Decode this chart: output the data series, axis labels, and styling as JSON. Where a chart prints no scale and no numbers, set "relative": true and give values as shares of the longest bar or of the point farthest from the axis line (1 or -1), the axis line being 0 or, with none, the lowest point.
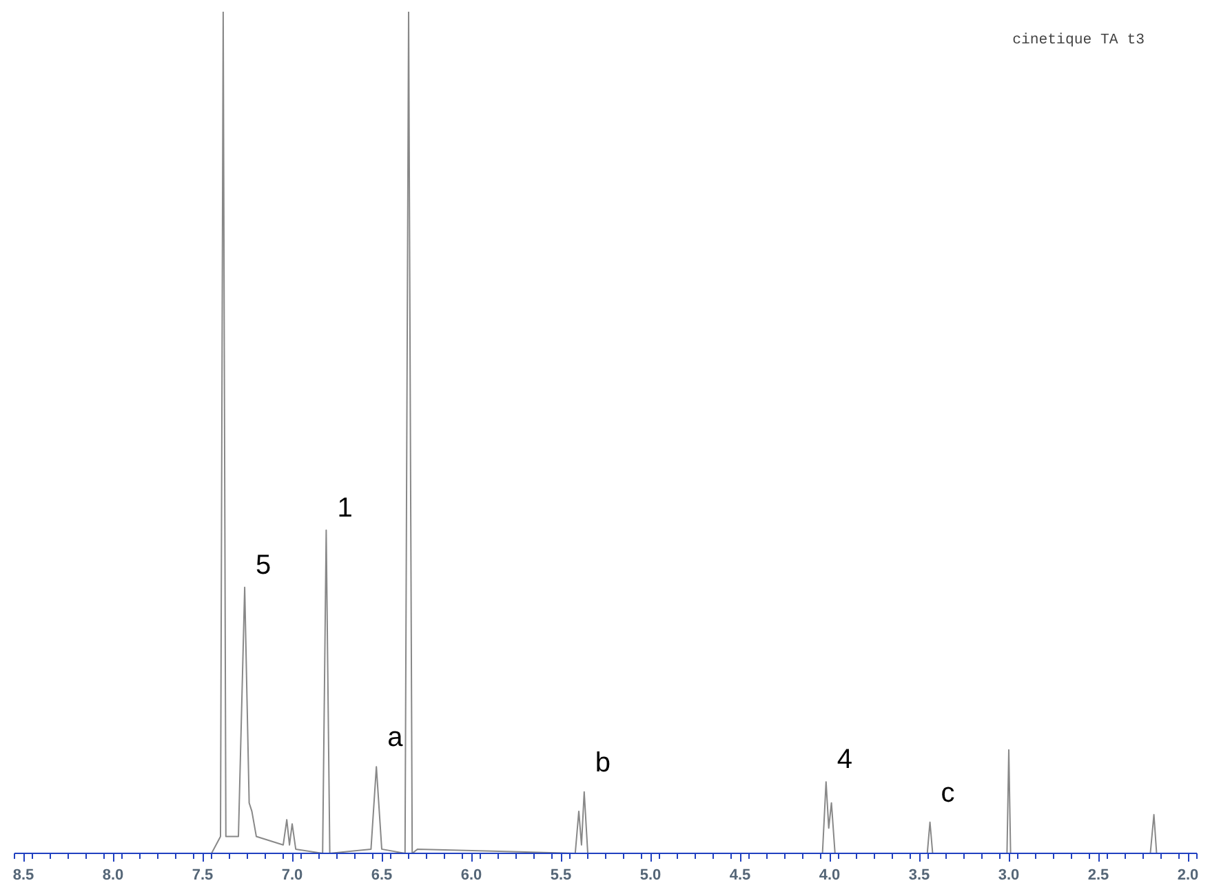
{
  "chart_data": {
    "type": "line",
    "relative": true,
    "grid": false,
    "marker": "none",
    "line_style": "solid",
    "tick_labels": "x",
    "x": [
      8.5,
      7.45,
      7.4,
      7.385,
      7.37,
      7.3,
      7.265,
      7.24,
      7.225,
      7.2,
      7.05,
      7.03,
      7.015,
      7.0,
      6.98,
      6.83,
      6.81,
      6.79,
      6.56,
      6.53,
      6.5,
      6.37,
      6.35,
      6.33,
      6.3,
      5.42,
      5.4,
      5.385,
      5.37,
      5.35,
      4.04,
      4.02,
      4.005,
      3.99,
      3.97,
      3.455,
      3.44,
      3.425,
      3.01,
      3.0,
      2.99,
      2.21,
      2.19,
      2.175,
      2.0
    ],
    "series": [
      {
        "color": "#888888",
        "values": [
          0,
          0,
          0.02,
          1,
          0.02,
          0.02,
          0.316,
          0.06,
          0.05,
          0.02,
          0.01,
          0.04,
          0.01,
          0.035,
          0.005,
          0,
          0.384,
          0,
          0.005,
          0.103,
          0.005,
          0,
          1,
          0,
          0.005,
          0,
          0.05,
          0.01,
          0.073,
          0,
          0,
          0.085,
          0.03,
          0.06,
          0,
          0,
          0.037,
          0,
          0,
          0.123,
          0,
          0,
          0.046,
          0,
          0
        ]
      }
    ],
    "xlim": [
      8.55,
      1.95
    ],
    "xticks": [
      8.5,
      {
        "value": 8,
        "label": "8.0"
      },
      7.5,
      {
        "value": 7,
        "label": "7.0"
      },
      6.5,
      {
        "value": 6,
        "label": "6.0"
      },
      5.5,
      {
        "value": 5,
        "label": "5.0"
      },
      4.5,
      {
        "value": 4,
        "label": "4.0"
      },
      3.5,
      {
        "value": 3,
        "label": "3.0"
      },
      2.5,
      {
        "value": 2,
        "label": "2.0"
      }
    ],
    "annotations": [
      "cinetique TA t3",
      {
        "text": "1",
        "x": 6.81,
        "y": 0.384
      },
      {
        "text": "5",
        "x": 7.265,
        "y": 0.316
      },
      {
        "text": "a",
        "x": 6.53,
        "y": 0.103
      },
      {
        "text": "b",
        "x": 5.37,
        "y": 0.073
      },
      {
        "text": "4",
        "x": 4.02,
        "y": 0.085
      },
      {
        "text": "c",
        "x": 3.44,
        "y": 0.037
      }
    ]
  }
}
